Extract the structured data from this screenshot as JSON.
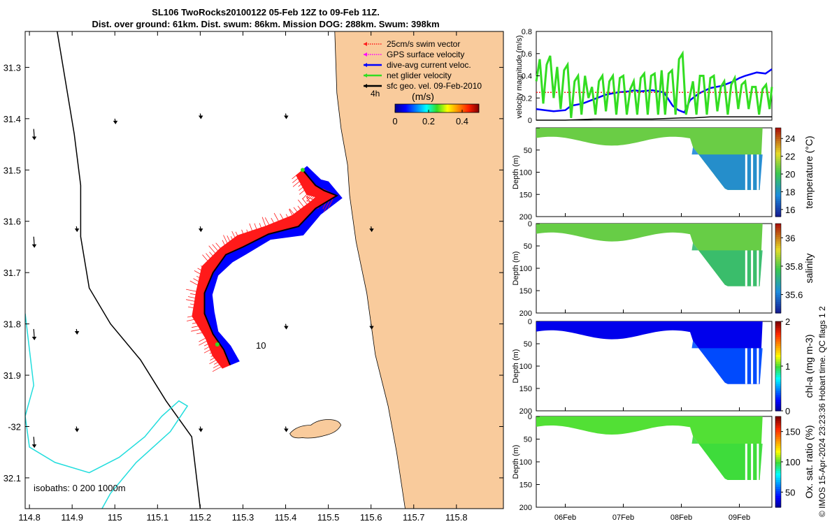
{
  "title": {
    "line1": "SL106 TwoRocks20100122 05-Feb 12Z to 09-Feb 11Z.",
    "line2": "Dist. over ground: 61km. Dist. swum: 86km. Mission DOG: 288km. Swum: 398km"
  },
  "credit": "© IMOS 15-Apr-2024 23:23:36 Hobart time. QC flags 1  2",
  "colors": {
    "land": "#f9cb9c",
    "red_track": "#ff1a1a",
    "blue_track": "#0000ff",
    "green": "#33dd22",
    "isobath_cyan": "#22dddd"
  },
  "chart_data": [
    {
      "type": "map",
      "xlim": [
        114.79,
        115.91
      ],
      "ylim": [
        31.23,
        32.16
      ],
      "y_inverted": true,
      "x_ticks": [
        114.8,
        114.9,
        115,
        115.1,
        115.2,
        115.3,
        115.4,
        115.5,
        115.6,
        115.7,
        115.8
      ],
      "x_tick_labels": [
        "114.8",
        "114.9",
        "115",
        "115.1",
        "115.2",
        "115.3",
        "115.4",
        "115.5",
        "115.6",
        "115.7",
        "115.8"
      ],
      "y_ticks": [
        31.3,
        31.4,
        31.5,
        31.6,
        31.7,
        31.8,
        31.9,
        32.0,
        32.1
      ],
      "y_tick_labels": [
        "31.3",
        "31.4",
        "31.5",
        "31.6",
        "31.7",
        "31.8",
        "31.9",
        "-32",
        "32.1"
      ],
      "legend": {
        "position": "top-right",
        "entries": [
          {
            "label": "25cm/s swim vector",
            "color": "#ff1a1a",
            "style": "dotted"
          },
          {
            "label": "GPS surface velocity",
            "color": "#ff00ff",
            "style": "dotted"
          },
          {
            "label": "dive-avg current veloc.",
            "color": "#0000ff",
            "style": "solid"
          },
          {
            "label": "net glider velocity",
            "color": "#33dd22",
            "style": "solid"
          },
          {
            "label": "sfc geo. vel. 09-Feb-2010",
            "color": "#000000",
            "style": "solid"
          }
        ]
      },
      "colorbar": {
        "title": "(m/s)",
        "time_label": "4h",
        "ticks": [
          0,
          0.2,
          0.4
        ],
        "tick_labels": [
          "0",
          "0.2",
          "0.4"
        ],
        "range": [
          0,
          0.5
        ]
      },
      "track_label": "10",
      "isobaths_label": "isobaths: 0   200  1000m",
      "track": [
        [
          115.44,
          31.5
        ],
        [
          115.47,
          31.53
        ],
        [
          115.49,
          31.54
        ],
        [
          115.52,
          31.55
        ],
        [
          115.47,
          31.575
        ],
        [
          115.43,
          31.61
        ],
        [
          115.36,
          31.625
        ],
        [
          115.3,
          31.65
        ],
        [
          115.26,
          31.665
        ],
        [
          115.23,
          31.7
        ],
        [
          115.21,
          31.74
        ],
        [
          115.21,
          31.78
        ],
        [
          115.23,
          31.82
        ],
        [
          115.255,
          31.85
        ],
        [
          115.27,
          31.88
        ]
      ],
      "coast": [
        [
          115.515,
          31.23
        ],
        [
          115.52,
          31.35
        ],
        [
          115.53,
          31.42
        ],
        [
          115.545,
          31.49
        ],
        [
          115.55,
          31.55
        ],
        [
          115.565,
          31.64
        ],
        [
          115.59,
          31.74
        ],
        [
          115.61,
          31.86
        ],
        [
          115.64,
          31.96
        ],
        [
          115.66,
          32.05
        ],
        [
          115.68,
          32.16
        ]
      ],
      "isobath_200": [
        [
          114.865,
          31.23
        ],
        [
          114.885,
          31.33
        ],
        [
          114.905,
          31.43
        ],
        [
          114.92,
          31.53
        ],
        [
          114.92,
          31.63
        ],
        [
          114.94,
          31.73
        ],
        [
          114.99,
          31.8
        ],
        [
          115.06,
          31.87
        ],
        [
          115.12,
          31.95
        ],
        [
          115.18,
          32.02
        ],
        [
          115.2,
          32.16
        ]
      ],
      "isobath_1000": [
        [
          114.79,
          31.78
        ],
        [
          114.8,
          31.85
        ],
        [
          114.81,
          31.92
        ],
        [
          114.79,
          31.98
        ],
        [
          114.8,
          32.04
        ],
        [
          114.86,
          32.07
        ],
        [
          114.94,
          32.09
        ],
        [
          115.01,
          32.06
        ],
        [
          115.07,
          32.02
        ],
        [
          115.11,
          31.98
        ],
        [
          115.15,
          31.95
        ],
        [
          115.17,
          31.96
        ],
        [
          115.13,
          32.01
        ],
        [
          115.05,
          32.07
        ],
        [
          114.99,
          32.13
        ],
        [
          114.97,
          32.16
        ]
      ]
    },
    {
      "type": "line",
      "ylabel": "velocity magnitude (m/s)",
      "ylim": [
        0,
        0.8
      ],
      "y_ticks": [
        0,
        0.2,
        0.4,
        0.6,
        0.8
      ],
      "y_tick_labels": [
        "0",
        "0.2",
        "0.4",
        "0.6",
        "0.8"
      ],
      "xlim": [
        5.5,
        9.56
      ],
      "series": [
        {
          "name": "dive-avg current veloc.",
          "color": "#0000ff",
          "x": [
            5.5,
            5.65,
            5.8,
            6.0,
            6.1,
            6.3,
            6.5,
            6.7,
            6.9,
            7.1,
            7.2,
            7.3,
            7.5,
            7.7,
            7.85,
            7.95,
            8.05,
            8.15,
            8.3,
            8.5,
            8.7,
            8.9,
            9.0,
            9.1,
            9.3,
            9.45,
            9.56
          ],
          "values": [
            0.1,
            0.09,
            0.08,
            0.09,
            0.13,
            0.15,
            0.19,
            0.23,
            0.25,
            0.26,
            0.27,
            0.26,
            0.27,
            0.25,
            0.13,
            0.09,
            0.07,
            0.18,
            0.24,
            0.29,
            0.31,
            0.35,
            0.38,
            0.4,
            0.43,
            0.42,
            0.46
          ]
        },
        {
          "name": "25cm/s swim vector",
          "color": "#ff1a1a",
          "x": [
            5.5,
            9.56
          ],
          "values": [
            0.25,
            0.25
          ]
        },
        {
          "name": "sfc geo. vel.",
          "color": "#000000",
          "x": [
            5.5,
            6.0,
            6.5,
            7.0,
            7.5,
            8.0,
            8.2,
            8.5,
            9.0,
            9.56
          ],
          "values": [
            0.0,
            0.0,
            0.01,
            0.01,
            0.01,
            0.02,
            0.02,
            0.03,
            0.03,
            0.03
          ]
        },
        {
          "name": "net glider velocity",
          "color": "#33dd22",
          "x": [
            5.5,
            5.56,
            5.62,
            5.68,
            5.74,
            5.8,
            5.86,
            5.92,
            5.98,
            6.04,
            6.1,
            6.16,
            6.22,
            6.28,
            6.34,
            6.4,
            6.46,
            6.52,
            6.58,
            6.64,
            6.7,
            6.76,
            6.82,
            6.88,
            6.94,
            7.0,
            7.06,
            7.12,
            7.18,
            7.24,
            7.3,
            7.36,
            7.42,
            7.48,
            7.54,
            7.6,
            7.66,
            7.72,
            7.78,
            7.84,
            7.9,
            7.96,
            8.02,
            8.08,
            8.14,
            8.2,
            8.26,
            8.32,
            8.38,
            8.44,
            8.5,
            8.56,
            8.62,
            8.68,
            8.74,
            8.8,
            8.86,
            8.92,
            8.98,
            9.04,
            9.1,
            9.16,
            9.22,
            9.28,
            9.34,
            9.4,
            9.46,
            9.52,
            9.56
          ],
          "values": [
            0.35,
            0.55,
            0.15,
            0.5,
            0.58,
            0.2,
            0.48,
            0.1,
            0.45,
            0.5,
            0.02,
            0.35,
            0.4,
            0.05,
            0.4,
            0.2,
            0.3,
            0.05,
            0.35,
            0.4,
            0.08,
            0.35,
            0.4,
            0.05,
            0.38,
            0.4,
            0.05,
            0.28,
            0.35,
            0.05,
            0.38,
            0.42,
            0.05,
            0.4,
            0.42,
            0.05,
            0.45,
            0.05,
            0.42,
            0.45,
            0.05,
            0.55,
            0.6,
            0.05,
            0.2,
            0.35,
            0.05,
            0.4,
            0.4,
            0.05,
            0.38,
            0.4,
            0.08,
            0.3,
            0.35,
            0.05,
            0.32,
            0.38,
            0.1,
            0.32,
            0.35,
            0.1,
            0.3,
            0.3,
            0.05,
            0.28,
            0.32,
            0.1,
            0.3
          ]
        }
      ]
    },
    {
      "type": "heatmap",
      "ylabel": "Depth (m)",
      "clabel": "temperature (°C)",
      "ylim": [
        0,
        200
      ],
      "y_ticks": [
        0,
        50,
        100,
        150,
        200
      ],
      "y_tick_labels": [
        "",
        "50",
        "100",
        "150",
        "200"
      ],
      "clim": [
        15.2,
        25.2
      ],
      "c_ticks": [
        16,
        18,
        20,
        22,
        24
      ],
      "c_tick_labels": [
        "16",
        "18",
        "20",
        "22",
        "24"
      ],
      "surface_value": 20.8,
      "deep_value": 17.6
    },
    {
      "type": "heatmap",
      "ylabel": "Depth (m)",
      "clabel": "salinity",
      "ylim": [
        0,
        200
      ],
      "y_ticks": [
        0,
        50,
        100,
        150,
        200
      ],
      "y_tick_labels": [
        "0",
        "50",
        "100",
        "150",
        "200"
      ],
      "clim": [
        35.47,
        36.1
      ],
      "c_ticks": [
        35.6,
        35.8,
        36
      ],
      "c_tick_labels": [
        "35.6",
        "35.8",
        "36"
      ],
      "surface_value": 35.82,
      "deep_value": 35.75
    },
    {
      "type": "heatmap",
      "ylabel": "Depth (m)",
      "clabel": "chl-a (mg m-3)",
      "ylim": [
        0,
        200
      ],
      "y_ticks": [
        0,
        50,
        100,
        150,
        200
      ],
      "y_tick_labels": [
        "0",
        "50",
        "100",
        "150",
        "200"
      ],
      "clim": [
        0,
        2
      ],
      "c_ticks": [
        0,
        1,
        2
      ],
      "c_tick_labels": [
        "0",
        "1",
        "2"
      ],
      "surface_value": 0.2,
      "deep_value": 0.4
    },
    {
      "type": "heatmap",
      "ylabel": "Depth (m)",
      "clabel": "Ox. sat. ratio (%)",
      "ylim": [
        0,
        200
      ],
      "y_ticks": [
        0,
        50,
        100,
        150,
        200
      ],
      "y_tick_labels": [
        "0",
        "50",
        "100",
        "150",
        "200"
      ],
      "clim": [
        25,
        175
      ],
      "c_ticks": [
        50,
        100,
        150
      ],
      "c_tick_labels": [
        "50",
        "100",
        "150"
      ],
      "surface_value": 102,
      "deep_value": 100
    }
  ],
  "time_axis": {
    "ticks": [
      6,
      7,
      8,
      9
    ],
    "tick_labels": [
      "06Feb",
      "07Feb",
      "08Feb",
      "09Feb"
    ]
  }
}
